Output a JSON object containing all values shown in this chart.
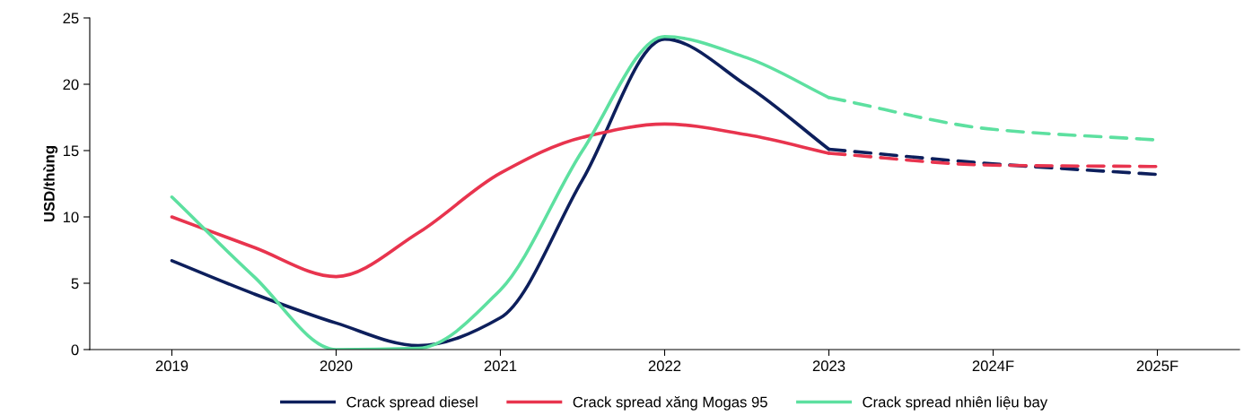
{
  "chart_data": {
    "type": "line",
    "ylabel": "USD/thùng",
    "xlim": [
      2018.5,
      2025.5
    ],
    "xticks": [
      2019,
      2020,
      2021,
      2022,
      2023,
      {
        "value": 2024,
        "label": "2024F"
      },
      {
        "value": 2025,
        "label": "2025F"
      }
    ],
    "ylim": [
      0,
      25
    ],
    "yticks": [
      0,
      5,
      10,
      15,
      20,
      25
    ],
    "grid": false,
    "legend": "bottom",
    "marker": "none",
    "series": [
      {
        "name": "Crack spread diesel",
        "color": "#0d1f5c",
        "line_style": "solid",
        "x": [
          2019,
          2019.5,
          2020,
          2020.5,
          2021,
          2021.5,
          2022,
          2022.5,
          2023
        ],
        "values": [
          6.7,
          4.2,
          2.0,
          0.3,
          2.4,
          12.8,
          23.4,
          19.9,
          15.1
        ]
      },
      {
        "name": "Crack spread xăng Mogas 95",
        "color": "#e8344e",
        "line_style": "solid",
        "x": [
          2019,
          2019.5,
          2020,
          2020.5,
          2021,
          2021.5,
          2022,
          2022.5,
          2023
        ],
        "values": [
          10.0,
          7.7,
          5.5,
          8.8,
          13.3,
          16.0,
          17.0,
          16.2,
          14.8
        ]
      },
      {
        "name": "Crack spread nhiên liệu bay",
        "color": "#5de0a0",
        "line_style": "solid",
        "x": [
          2019,
          2019.5,
          2020,
          2020.5,
          2021,
          2021.5,
          2022,
          2022.5,
          2023
        ],
        "values": [
          11.5,
          5.5,
          0.0,
          0.1,
          4.5,
          15.0,
          23.6,
          22.0,
          19.0
        ]
      },
      {
        "color": "#0d1f5c",
        "line_style": "dashed",
        "x": [
          2023,
          2024,
          2025
        ],
        "values": [
          15.1,
          14.0,
          13.2
        ]
      },
      {
        "color": "#e8344e",
        "line_style": "dashed",
        "x": [
          2023,
          2024,
          2025
        ],
        "values": [
          14.8,
          13.9,
          13.8
        ]
      },
      {
        "color": "#5de0a0",
        "line_style": "dashed",
        "x": [
          2023,
          2024,
          2025
        ],
        "values": [
          19.0,
          16.6,
          15.8
        ]
      }
    ]
  }
}
